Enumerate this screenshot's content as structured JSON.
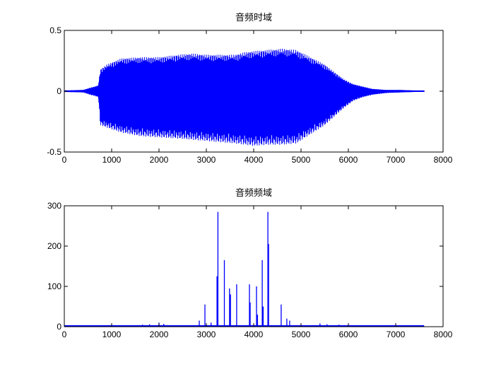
{
  "figure": {
    "background": "#ffffff",
    "line_color": "#0000ff",
    "axes_color": "#000000"
  },
  "chart_data": [
    {
      "type": "line",
      "title": "音频时域",
      "xlabel": "",
      "ylabel": "",
      "xlim": [
        0,
        8000
      ],
      "ylim": [
        -0.5,
        0.5
      ],
      "xticks": [
        "0",
        "1000",
        "2000",
        "3000",
        "4000",
        "5000",
        "6000",
        "7000",
        "8000"
      ],
      "yticks": [
        "-0.5",
        "0",
        "0.5"
      ],
      "grid": false,
      "legend": null,
      "description": "Audio waveform envelope (approximate upper and lower amplitude bounds over sample index)",
      "envelope": {
        "x": [
          0,
          400,
          550,
          650,
          720,
          760,
          900,
          1200,
          1600,
          2000,
          2400,
          2700,
          3000,
          3300,
          3600,
          3800,
          4000,
          4300,
          4600,
          4900,
          5100,
          5300,
          5500,
          5700,
          5900,
          6100,
          6300,
          6500,
          6800,
          7100,
          7400,
          7600
        ],
        "upper": [
          0.005,
          0.01,
          0.03,
          0.04,
          0.05,
          0.18,
          0.22,
          0.27,
          0.28,
          0.28,
          0.3,
          0.31,
          0.3,
          0.3,
          0.3,
          0.32,
          0.33,
          0.34,
          0.35,
          0.34,
          0.3,
          0.26,
          0.22,
          0.16,
          0.1,
          0.06,
          0.04,
          0.02,
          0.01,
          0.01,
          0.005,
          0.005
        ],
        "lower": [
          -0.005,
          -0.01,
          -0.03,
          -0.04,
          -0.05,
          -0.28,
          -0.3,
          -0.34,
          -0.37,
          -0.38,
          -0.39,
          -0.4,
          -0.41,
          -0.42,
          -0.43,
          -0.44,
          -0.45,
          -0.44,
          -0.44,
          -0.43,
          -0.38,
          -0.33,
          -0.28,
          -0.21,
          -0.14,
          -0.08,
          -0.05,
          -0.03,
          -0.015,
          -0.01,
          -0.005,
          -0.005
        ]
      }
    },
    {
      "type": "line",
      "title": "音频频域",
      "xlabel": "",
      "ylabel": "",
      "xlim": [
        0,
        8000
      ],
      "ylim": [
        0,
        300
      ],
      "xticks": [
        "0",
        "1000",
        "2000",
        "3000",
        "4000",
        "5000",
        "6000",
        "7000",
        "8000"
      ],
      "yticks": [
        "0",
        "100",
        "200",
        "300"
      ],
      "grid": false,
      "legend": null,
      "description": "Magnitude spectrum; mostly near zero with dominant peaks between ~2900 and ~4700, data ends near 7600",
      "peaks": {
        "x": [
          1650,
          1800,
          2000,
          2100,
          2850,
          2970,
          3100,
          3225,
          3245,
          3380,
          3490,
          3510,
          3640,
          3910,
          3925,
          4060,
          4080,
          4180,
          4200,
          4300,
          4315,
          4580,
          4700,
          4760,
          5400,
          5550,
          5800
        ],
        "values": [
          5,
          6,
          10,
          7,
          15,
          55,
          10,
          125,
          285,
          165,
          95,
          80,
          105,
          105,
          60,
          100,
          30,
          165,
          50,
          285,
          205,
          55,
          20,
          15,
          8,
          6,
          5
        ]
      },
      "baseline": {
        "x_start": 0,
        "x_end": 7600,
        "value": 2
      }
    }
  ]
}
